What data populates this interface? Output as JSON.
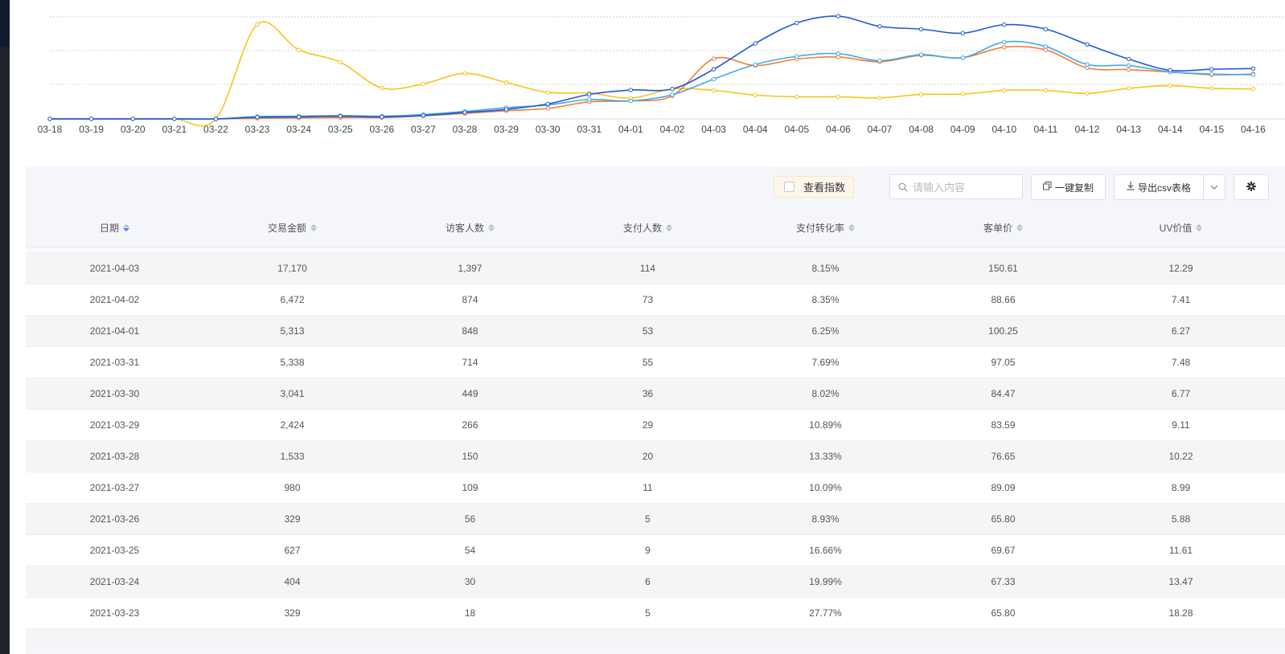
{
  "chart_data": {
    "type": "line",
    "categories": [
      "03-18",
      "03-19",
      "03-20",
      "03-21",
      "03-22",
      "03-23",
      "03-24",
      "03-25",
      "03-26",
      "03-27",
      "03-28",
      "03-29",
      "03-30",
      "03-31",
      "04-01",
      "04-02",
      "04-03",
      "04-04",
      "04-05",
      "04-06",
      "04-07",
      "04-08",
      "04-09",
      "04-10",
      "04-11",
      "04-12",
      "04-13",
      "04-14",
      "04-15",
      "04-16"
    ],
    "ylim": [
      0,
      3
    ],
    "grid": true,
    "series": [
      {
        "name": "series-dark-blue",
        "color": "#1f5ad6",
        "values": [
          0,
          0,
          0,
          0,
          0,
          0.05,
          0.06,
          0.08,
          0.06,
          0.1,
          0.19,
          0.28,
          0.44,
          0.72,
          0.85,
          0.88,
          1.46,
          2.22,
          2.82,
          3.02,
          2.72,
          2.64,
          2.52,
          2.77,
          2.64,
          2.19,
          1.76,
          1.43,
          1.46,
          1.48
        ]
      },
      {
        "name": "series-orange",
        "color": "#f07d35",
        "values": [
          0,
          0,
          0,
          0,
          0,
          0.02,
          0.03,
          0.04,
          0.04,
          0.09,
          0.16,
          0.24,
          0.31,
          0.5,
          0.53,
          0.68,
          1.77,
          1.57,
          1.76,
          1.82,
          1.68,
          1.87,
          1.8,
          2.11,
          2.03,
          1.5,
          1.45,
          1.38,
          1.3,
          1.32
        ]
      },
      {
        "name": "series-light-blue",
        "color": "#41a8ea",
        "values": [
          0,
          0,
          0,
          0,
          0,
          0.07,
          0.08,
          0.1,
          0.08,
          0.13,
          0.22,
          0.33,
          0.41,
          0.57,
          0.53,
          0.71,
          1.17,
          1.6,
          1.84,
          1.92,
          1.71,
          1.89,
          1.8,
          2.26,
          2.13,
          1.6,
          1.57,
          1.38,
          1.32,
          1.3
        ]
      },
      {
        "name": "series-yellow",
        "color": "#f5c518",
        "values": [
          0,
          0,
          0,
          0,
          0,
          2.78,
          2.03,
          1.67,
          0.91,
          1.03,
          1.34,
          1.07,
          0.78,
          0.76,
          0.61,
          0.88,
          0.84,
          0.7,
          0.65,
          0.65,
          0.62,
          0.72,
          0.73,
          0.84,
          0.84,
          0.75,
          0.9,
          0.98,
          0.9,
          0.88
        ]
      }
    ]
  },
  "toolbar": {
    "index_toggle_label": "查看指数",
    "search_placeholder": "请输入内容",
    "copy_label": "一键复制",
    "export_label": "导出csv表格"
  },
  "table": {
    "headers": [
      "日期",
      "交易金额",
      "访客人数",
      "支付人数",
      "支付转化率",
      "客单价",
      "UV价值"
    ],
    "rows": [
      [
        "2021-04-03",
        "17,170",
        "1,397",
        "114",
        "8.15%",
        "150.61",
        "12.29"
      ],
      [
        "2021-04-02",
        "6,472",
        "874",
        "73",
        "8.35%",
        "88.66",
        "7.41"
      ],
      [
        "2021-04-01",
        "5,313",
        "848",
        "53",
        "6.25%",
        "100.25",
        "6.27"
      ],
      [
        "2021-03-31",
        "5,338",
        "714",
        "55",
        "7.69%",
        "97.05",
        "7.48"
      ],
      [
        "2021-03-30",
        "3,041",
        "449",
        "36",
        "8.02%",
        "84.47",
        "6.77"
      ],
      [
        "2021-03-29",
        "2,424",
        "266",
        "29",
        "10.89%",
        "83.59",
        "9.11"
      ],
      [
        "2021-03-28",
        "1,533",
        "150",
        "20",
        "13.33%",
        "76.65",
        "10.22"
      ],
      [
        "2021-03-27",
        "980",
        "109",
        "11",
        "10.09%",
        "89.09",
        "8.99"
      ],
      [
        "2021-03-26",
        "329",
        "56",
        "5",
        "8.93%",
        "65.80",
        "5.88"
      ],
      [
        "2021-03-25",
        "627",
        "54",
        "9",
        "16.66%",
        "69.67",
        "11.61"
      ],
      [
        "2021-03-24",
        "404",
        "30",
        "6",
        "19.99%",
        "67.33",
        "13.47"
      ],
      [
        "2021-03-23",
        "329",
        "18",
        "5",
        "27.77%",
        "65.80",
        "18.28"
      ]
    ]
  }
}
